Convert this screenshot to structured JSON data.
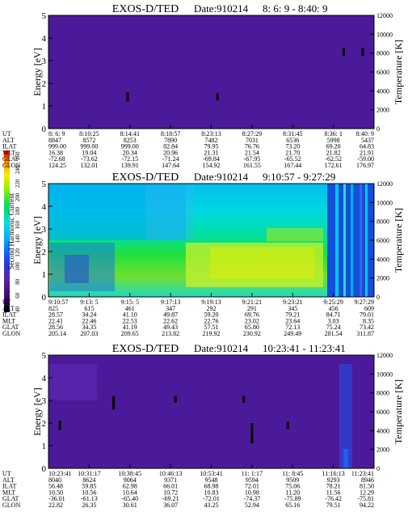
{
  "colorbar": {
    "label": "Second Harmonic Current",
    "ticks": [
      "40",
      "60",
      "80",
      "100",
      "120",
      "140",
      "160",
      "180",
      "200",
      "220",
      "240",
      "250"
    ]
  },
  "chart_data": [
    {
      "type": "heatmap",
      "title": "EXOS-D/TED",
      "date": "Date:910214",
      "time_range": "8: 6: 9 - 8:40: 9",
      "ylabel": "Energy [eV]",
      "y2label": "Temperature [K]",
      "ylim": [
        0,
        5
      ],
      "y2lim": [
        0,
        12000
      ],
      "yticks": [
        "0",
        "1",
        "2",
        "3",
        "4",
        "5"
      ],
      "y2ticks": [
        "0",
        "2000",
        "4000",
        "6000",
        "8000",
        "10000",
        "12000"
      ],
      "background": "#4a1a9a",
      "row_labels": [
        "UT",
        "ALT",
        "ILAT",
        "MLT",
        "GLAT",
        "GLON"
      ],
      "columns": [
        [
          "8: 6: 9",
          "8847",
          "999.00",
          "16.38",
          "-72.68",
          "124.25"
        ],
        [
          "8:10:25",
          "8572",
          "999.00",
          "19.04",
          "-73.62",
          "132.01"
        ],
        [
          "8:14:41",
          "8253",
          "999.00",
          "20.34",
          "-72.15",
          "139.91"
        ],
        [
          "8:18:57",
          "7890",
          "82.84",
          "20.96",
          "-71.24",
          "147.64"
        ],
        [
          "8:23:13",
          "7482",
          "79.95",
          "21.31",
          "-69.84",
          "154.92"
        ],
        [
          "8:27:29",
          "7031",
          "76.76",
          "21.54",
          "-67.95",
          "161.55"
        ],
        [
          "8:31:45",
          "6536",
          "73.20",
          "21.70",
          "-65.52",
          "167.44"
        ],
        [
          "8:36: 1",
          "5998",
          "69.20",
          "21.82",
          "-62.52",
          "172.61"
        ],
        [
          "8:40: 9",
          "5437",
          "64.83",
          "21.91",
          "-59.00",
          "176.97"
        ]
      ],
      "features": [
        {
          "t": 0.243,
          "e0": 1.2,
          "e1": 1.6
        },
        {
          "t": 0.519,
          "e0": 1.25,
          "e1": 1.55
        },
        {
          "t": 0.907,
          "e0": 3.2,
          "e1": 3.55
        },
        {
          "t": 0.965,
          "e0": 3.2,
          "e1": 3.55
        }
      ]
    },
    {
      "type": "heatmap",
      "title": "EXOS-D/TED",
      "date": "Date:910214",
      "time_range": "9:10:57 - 9:27:29",
      "ylabel": "Energy [eV]",
      "y2label": "Temperature [K]",
      "ylim": [
        0,
        5
      ],
      "y2lim": [
        0,
        12000
      ],
      "yticks": [
        "0",
        "1",
        "2",
        "3",
        "4",
        "5"
      ],
      "y2ticks": [
        "0",
        "2000",
        "4000",
        "6000",
        "8000",
        "10000",
        "12000"
      ],
      "row_labels": [
        "UT",
        "ALT",
        "ILAT",
        "MLT",
        "GLAT",
        "GLON"
      ],
      "columns": [
        [
          "9:10:57",
          "825",
          "28.57",
          "22.41",
          "28.56",
          "205.14"
        ],
        [
          "9:13: 5",
          "615",
          "34.24",
          "22.46",
          "34.35",
          "207.03"
        ],
        [
          "9:15: 5",
          "461",
          "41.10",
          "22.53",
          "41.19",
          "209.65"
        ],
        [
          "9:17:13",
          "347",
          "49.87",
          "22.62",
          "49.43",
          "213.82"
        ],
        [
          "9:19:13",
          "292",
          "59.20",
          "22.76",
          "57.51",
          "219.92"
        ],
        [
          "9:21:21",
          "291",
          "69.76",
          "23.02",
          "65.80",
          "230.92"
        ],
        [
          "9:23:21",
          "345",
          "79.21",
          "23.64",
          "72.13",
          "249.49"
        ],
        [
          "9:25:29",
          "456",
          "84.71",
          "3.03",
          "75.24",
          "281.54"
        ],
        [
          "9:27:29",
          "609",
          "79.01",
          "8.35",
          "73.42",
          "311.87"
        ]
      ]
    },
    {
      "type": "heatmap",
      "title": "EXOS-D/TED",
      "date": "Date:910214",
      "time_range": "10:23:41 - 11:23:41",
      "ylabel": "Energy [eV]",
      "y2label": "Temperature [K]",
      "ylim": [
        0,
        5
      ],
      "y2lim": [
        0,
        12000
      ],
      "yticks": [
        "0",
        "1",
        "2",
        "3",
        "4",
        "5"
      ],
      "y2ticks": [
        "0",
        "2000",
        "4000",
        "6000",
        "8000",
        "10000",
        "12000"
      ],
      "background": "#4a1a9a",
      "row_labels": [
        "UT",
        "ALT",
        "ILAT",
        "MLT",
        "GLAT",
        "GLON"
      ],
      "columns": [
        [
          "10:23:41",
          "8040",
          "56.48",
          "10.50",
          "-36.01",
          "22.82"
        ],
        [
          "10:31:17",
          "8624",
          "59.85",
          "10.56",
          "-61.13",
          "26.35"
        ],
        [
          "10:38:45",
          "9064",
          "62.98",
          "10.64",
          "-65.40",
          "30.61"
        ],
        [
          "10:46:13",
          "9371",
          "66.01",
          "10.72",
          "-69.21",
          "36.07"
        ],
        [
          "10:53:41",
          "9548",
          "68.98",
          "10.83",
          "-72.01",
          "43.25"
        ],
        [
          "11: 1:17",
          "9594",
          "72.01",
          "10.98",
          "-74.37",
          "52.94"
        ],
        [
          "11: 8:45",
          "9509",
          "75.06",
          "11.20",
          "-75.89",
          "65.16"
        ],
        [
          "11:16:13",
          "9293",
          "78.21",
          "11.56",
          "-76.42",
          "79.51"
        ],
        [
          "11:23:41",
          "8946",
          "81.50",
          "12.29",
          "-75.81",
          "94.22"
        ]
      ],
      "features": [
        {
          "t": 0.035,
          "e0": 1.7,
          "e1": 2.1
        },
        {
          "t": 0.2,
          "e0": 2.6,
          "e1": 3.2
        },
        {
          "t": 0.39,
          "e0": 2.9,
          "e1": 3.2
        },
        {
          "t": 0.6,
          "e0": 2.9,
          "e1": 3.2
        },
        {
          "t": 0.625,
          "e0": 1.1,
          "e1": 2.0
        },
        {
          "t": 0.735,
          "e0": 1.75,
          "e1": 2.05
        }
      ]
    }
  ]
}
